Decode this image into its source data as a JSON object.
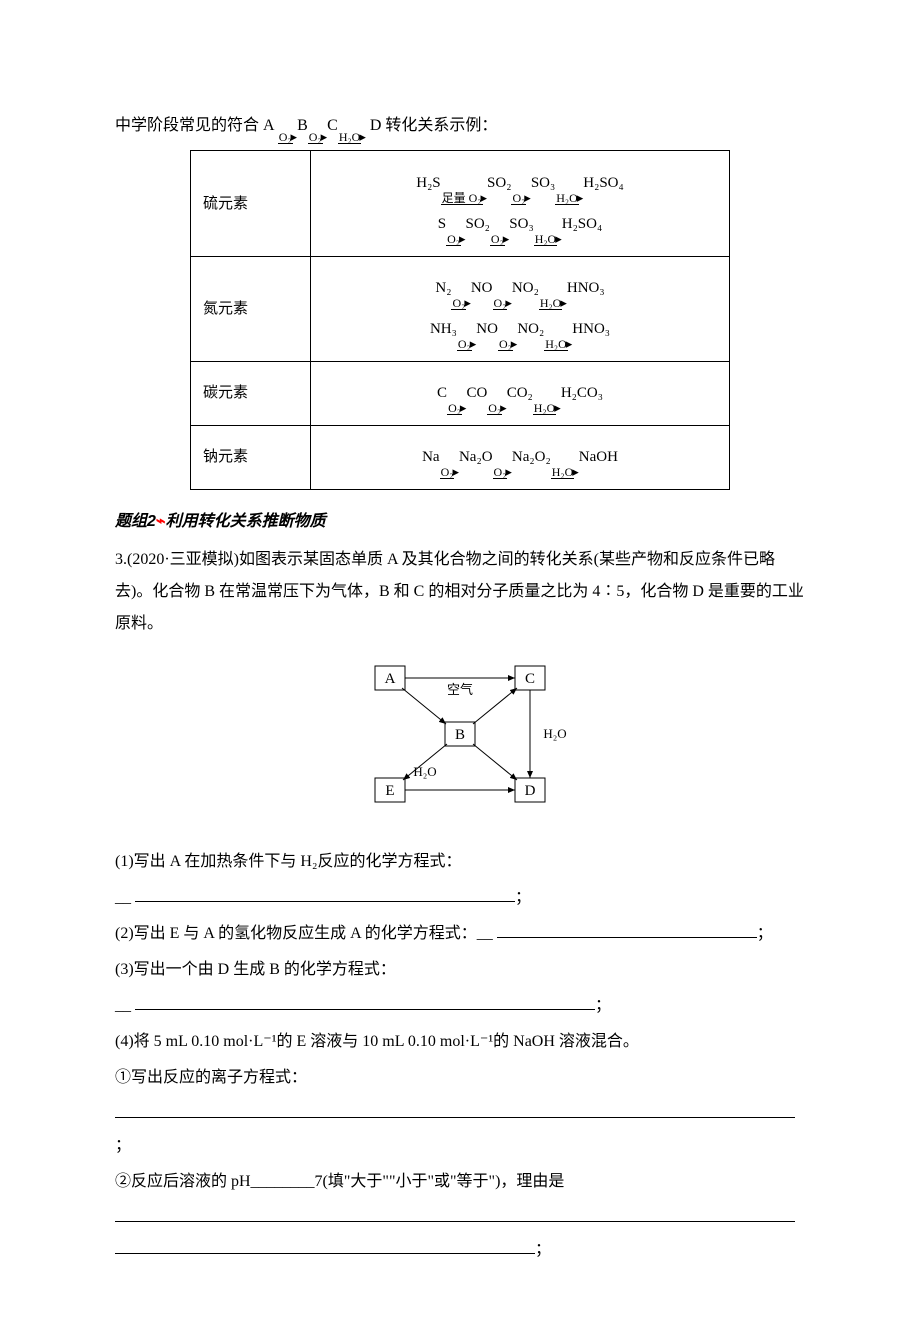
{
  "intro_prefix": "中学阶段常见的符合 A",
  "intro_suffix": "D 转化关系示例：",
  "chain_steps": [
    {
      "over": "O₂",
      "to": "B"
    },
    {
      "over": "O₂",
      "to": "C"
    },
    {
      "over": "H₂O",
      "to": ""
    }
  ],
  "table_rows": [
    {
      "label": "硫元素",
      "chains": [
        {
          "start": "H₂S",
          "steps": [
            {
              "over": "足量 O₂",
              "to": "SO₂"
            },
            {
              "over": "O₂",
              "to": "SO₃"
            },
            {
              "over": "H₂O",
              "to": "H₂SO₄"
            }
          ]
        },
        {
          "start": "S",
          "steps": [
            {
              "over": "O₂",
              "to": "SO₂"
            },
            {
              "over": "O₂",
              "to": "SO₃"
            },
            {
              "over": "H₂O",
              "to": "H₂SO₄"
            }
          ]
        }
      ]
    },
    {
      "label": "氮元素",
      "chains": [
        {
          "start": "N₂",
          "steps": [
            {
              "over": "O₂",
              "to": "NO"
            },
            {
              "over": "O₂",
              "to": "NO₂"
            },
            {
              "over": "H₂O",
              "to": "HNO₃"
            }
          ]
        },
        {
          "start": "NH₃",
          "steps": [
            {
              "over": "O₂",
              "to": "NO"
            },
            {
              "over": "O₂",
              "to": "NO₂"
            },
            {
              "over": "H₂O",
              "to": "HNO₃"
            }
          ]
        }
      ]
    },
    {
      "label": "碳元素",
      "chains": [
        {
          "start": "C",
          "steps": [
            {
              "over": "O₂",
              "to": "CO"
            },
            {
              "over": "O₂",
              "to": "CO₂"
            },
            {
              "over": "H₂O",
              "to": "H₂CO₃"
            }
          ]
        }
      ]
    },
    {
      "label": "钠元素",
      "chains": [
        {
          "start": "Na",
          "steps": [
            {
              "over": "O₂",
              "to": "Na₂O"
            },
            {
              "over": "O₂",
              "to": "Na₂O₂"
            },
            {
              "over": "H₂O",
              "to": "NaOH"
            }
          ]
        }
      ]
    }
  ],
  "group_header": {
    "prefix": "题组",
    "num": "2",
    "flash": "⌁",
    "title": "利用转化关系推断物质"
  },
  "q3_intro": "3.(2020·三亚模拟)如图表示某固态单质 A 及其化合物之间的转化关系(某些产物和反应条件已略去)。化合物 B 在常温常压下为气体，B 和 C 的相对分子质量之比为 4∶5，化合物 D 是重要的工业原料。",
  "diagram": {
    "nodes": {
      "A": "A",
      "B": "B",
      "C": "C",
      "D": "D",
      "E": "E"
    },
    "labels": {
      "air": "空气",
      "h2o_right": "H₂O",
      "h2o_left": "H₂O"
    }
  },
  "q_items": [
    {
      "text": "(1)写出 A 在加热条件下与 H₂反应的化学方程式："
    },
    {
      "text": "(2)写出 E 与 A 的氢化物反应生成 A 的化学方程式：__ ",
      "inline_blank": 260,
      "tail": "；"
    },
    {
      "text": "(3)写出一个由 D 生成 B 的化学方程式："
    },
    {
      "text": "(4)将 5 mL 0.10 mol·L⁻¹的 E 溶液与 10 mL 0.10 mol·L⁻¹的 NaOH 溶液混合。"
    },
    {
      "text": "①写出反应的离子方程式："
    },
    {
      "text": "②反应后溶液的 pH________7(填\"大于\"\"小于\"或\"等于\")，理由是"
    }
  ],
  "blank_after_1_width": 380,
  "blank_after_3_width": 460,
  "blank_full_width": 680,
  "blank_last_width": 420,
  "colors": {
    "text": "#000000",
    "bg": "#ffffff",
    "red": "#ff0000"
  }
}
